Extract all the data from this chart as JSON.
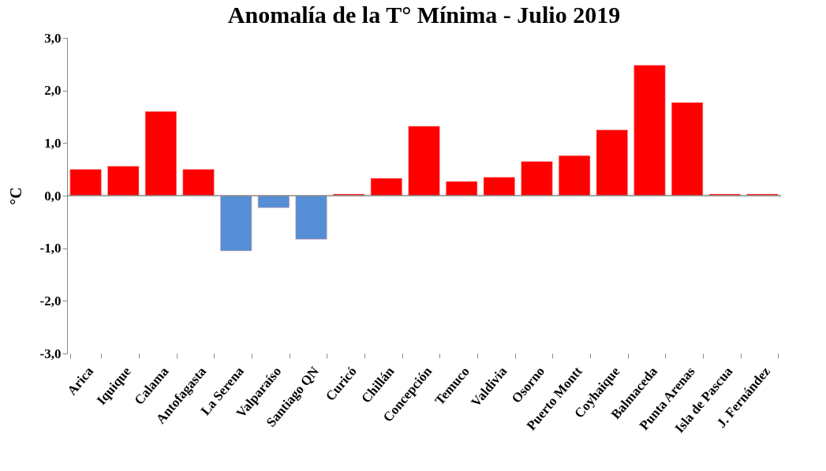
{
  "chart_data": {
    "type": "bar",
    "title": "Anomalía de la T° Mínima  - Julio 2019",
    "ylabel": "°C",
    "categories": [
      "Arica",
      "Iquique",
      "Calama",
      "Antofagasta",
      "La Serena",
      "Valparaíso",
      "Santiago QN",
      "Curicó",
      "Chillán",
      "Concepción",
      "Temuco",
      "Valdivia",
      "Osorno",
      "Puerto Montt",
      "Coyhaique",
      "Balmaceda",
      "Punta Arenas",
      "Isla de Pascua",
      "J. Fernández"
    ],
    "values": [
      0.5,
      0.56,
      1.6,
      0.5,
      -1.05,
      -0.23,
      -0.83,
      0.03,
      0.33,
      1.32,
      0.27,
      0.35,
      0.65,
      0.76,
      1.25,
      2.48,
      1.77,
      0.03,
      0.03
    ],
    "colors": [
      "#ff0000",
      "#ff0000",
      "#ff0000",
      "#ff0000",
      "#558ed5",
      "#558ed5",
      "#558ed5",
      "#ff0000",
      "#ff0000",
      "#ff0000",
      "#ff0000",
      "#ff0000",
      "#ff0000",
      "#ff0000",
      "#ff0000",
      "#ff0000",
      "#ff0000",
      "#ff0000",
      "#ff0000"
    ],
    "ylim": [
      -3,
      3
    ],
    "yticks": [
      {
        "value": -3,
        "label": "-3,0"
      },
      {
        "value": -2,
        "label": "-2,0"
      },
      {
        "value": -1,
        "label": "-1,0"
      },
      {
        "value": 0,
        "label": "0,0"
      },
      {
        "value": 1,
        "label": "1,0"
      },
      {
        "value": 2,
        "label": "2,0"
      },
      {
        "value": 3,
        "label": "3,0"
      }
    ]
  }
}
